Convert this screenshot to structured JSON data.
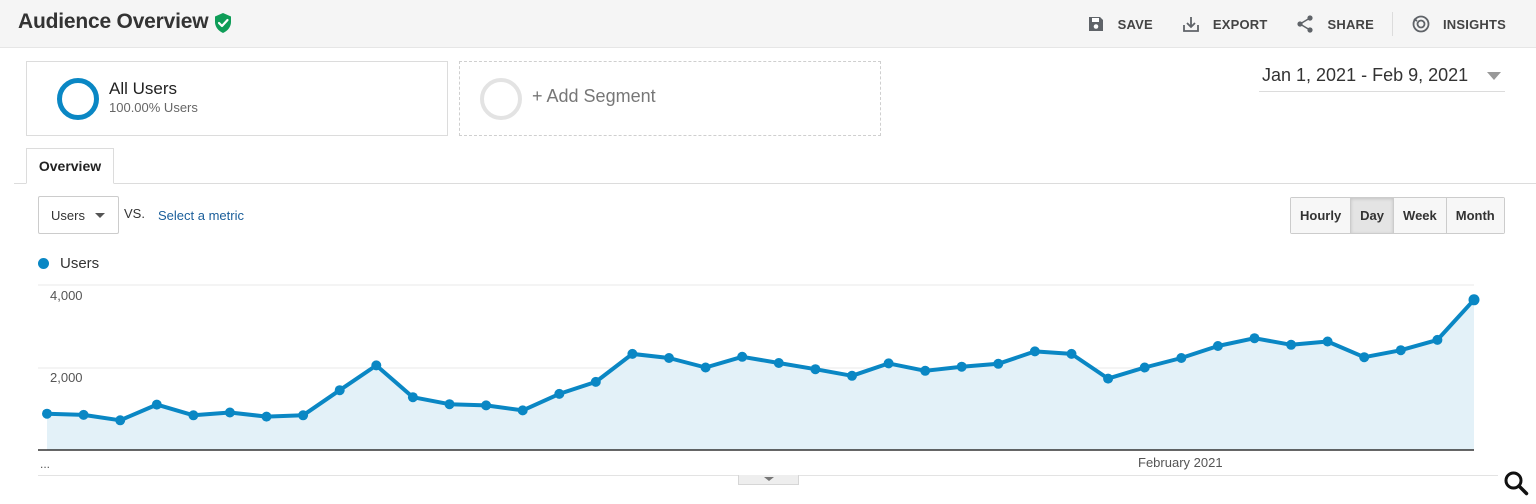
{
  "header": {
    "title": "Audience Overview",
    "verified_icon": "verified-shield-icon",
    "toolbar": [
      {
        "label": "SAVE",
        "icon": "save-icon"
      },
      {
        "label": "EXPORT",
        "icon": "export-icon"
      },
      {
        "label": "SHARE",
        "icon": "share-icon"
      },
      {
        "label": "INSIGHTS",
        "icon": "insights-icon"
      }
    ]
  },
  "segments": {
    "all_users": {
      "name": "All Users",
      "percent": "100.00% Users"
    },
    "add_segment": {
      "label": "+ Add Segment"
    }
  },
  "date_range": "Jan 1, 2021 - Feb 9, 2021",
  "tabs": [
    {
      "label": "Overview",
      "active": true
    }
  ],
  "metric": {
    "selected": "Users",
    "vs_label": "VS.",
    "select_link": "Select a metric"
  },
  "granularity": {
    "options": [
      "Hourly",
      "Day",
      "Week",
      "Month"
    ],
    "active": "Day"
  },
  "legend": {
    "label": "Users"
  },
  "colors": {
    "accent": "#0a87c4",
    "area_fill": "#e3f1f8",
    "verified_green": "#0f9d58",
    "link": "#1a5e9a"
  },
  "chart_data": {
    "type": "area",
    "series": [
      {
        "name": "Users",
        "values": [
          880,
          850,
          720,
          1100,
          840,
          910,
          810,
          840,
          1450,
          2050,
          1280,
          1110,
          1080,
          960,
          1360,
          1650,
          2330,
          2230,
          2000,
          2260,
          2110,
          1960,
          1800,
          2100,
          1920,
          2020,
          2090,
          2390,
          2330,
          1730,
          2000,
          2230,
          2520,
          2710,
          2550,
          2630,
          2250,
          2420,
          2670,
          3640
        ]
      }
    ],
    "y_ticks": [
      "4,000",
      "2,000"
    ],
    "ylim": [
      0,
      4000
    ],
    "x_labels": [
      "...",
      "February 2021"
    ],
    "grid": true
  }
}
